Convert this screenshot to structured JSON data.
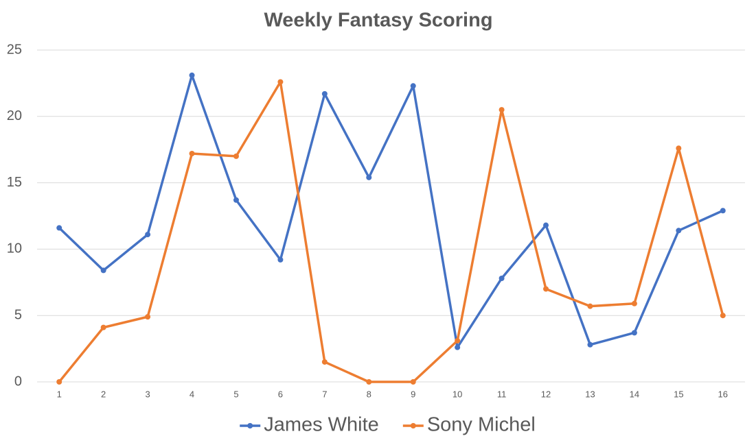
{
  "chart_data": {
    "type": "line",
    "title": "Weekly Fantasy Scoring",
    "categories": [
      "1",
      "2",
      "3",
      "4",
      "5",
      "6",
      "7",
      "8",
      "9",
      "10",
      "11",
      "12",
      "13",
      "14",
      "15",
      "16"
    ],
    "series": [
      {
        "name": "James White",
        "color": "#4472c4",
        "values": [
          11.6,
          8.4,
          11.1,
          23.1,
          13.7,
          9.2,
          21.7,
          15.4,
          22.3,
          2.6,
          7.8,
          11.8,
          2.8,
          3.7,
          11.4,
          12.9
        ]
      },
      {
        "name": "Sony Michel",
        "color": "#ed7d31",
        "values": [
          0,
          4.1,
          4.9,
          17.2,
          17.0,
          22.6,
          1.5,
          0,
          0,
          3.1,
          20.5,
          7.0,
          5.7,
          5.9,
          17.6,
          5.0
        ]
      }
    ],
    "ylim": [
      0,
      25
    ],
    "yticks": [
      0,
      5,
      10,
      15,
      20,
      25
    ],
    "grid": true,
    "legend": "bottom"
  }
}
